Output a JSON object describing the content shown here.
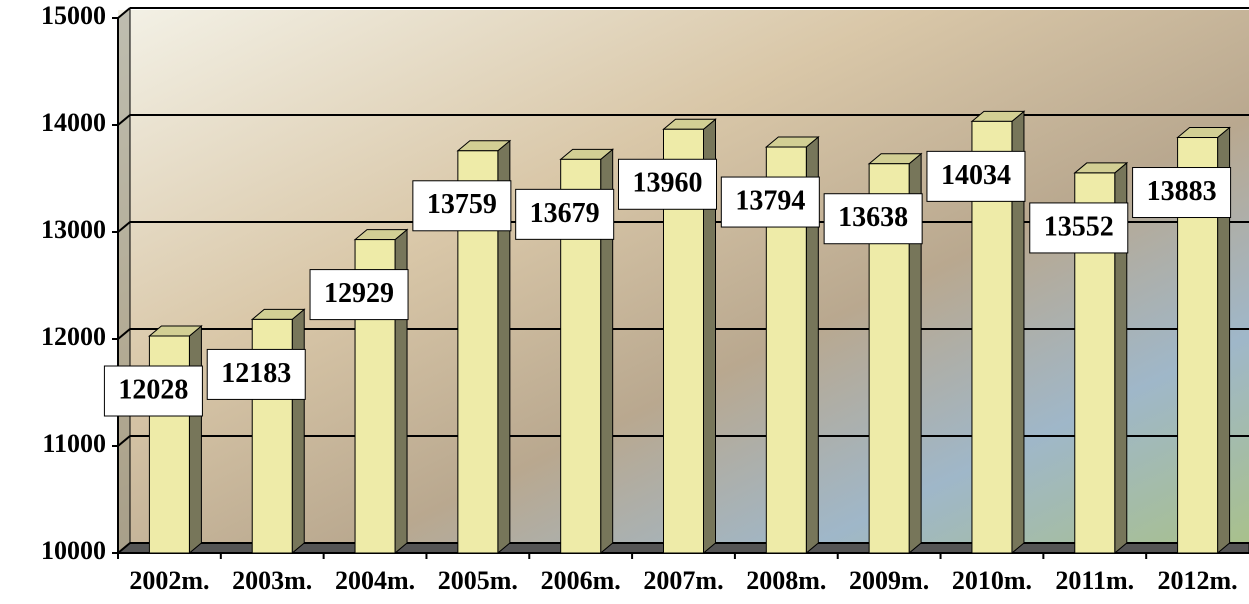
{
  "chart_data": {
    "type": "bar",
    "categories": [
      "2002m.",
      "2003m.",
      "2004m.",
      "2005m.",
      "2006m.",
      "2007m.",
      "2008m.",
      "2009m.",
      "2010m.",
      "2011m.",
      "2012m."
    ],
    "values": [
      12028,
      12183,
      12929,
      13759,
      13679,
      13960,
      13794,
      13638,
      14034,
      13552,
      13883
    ],
    "color": "#eeeba8",
    "ylim": [
      10000,
      15000
    ],
    "yticks": [
      10000,
      11000,
      12000,
      13000,
      14000,
      15000
    ],
    "grid": true
  }
}
